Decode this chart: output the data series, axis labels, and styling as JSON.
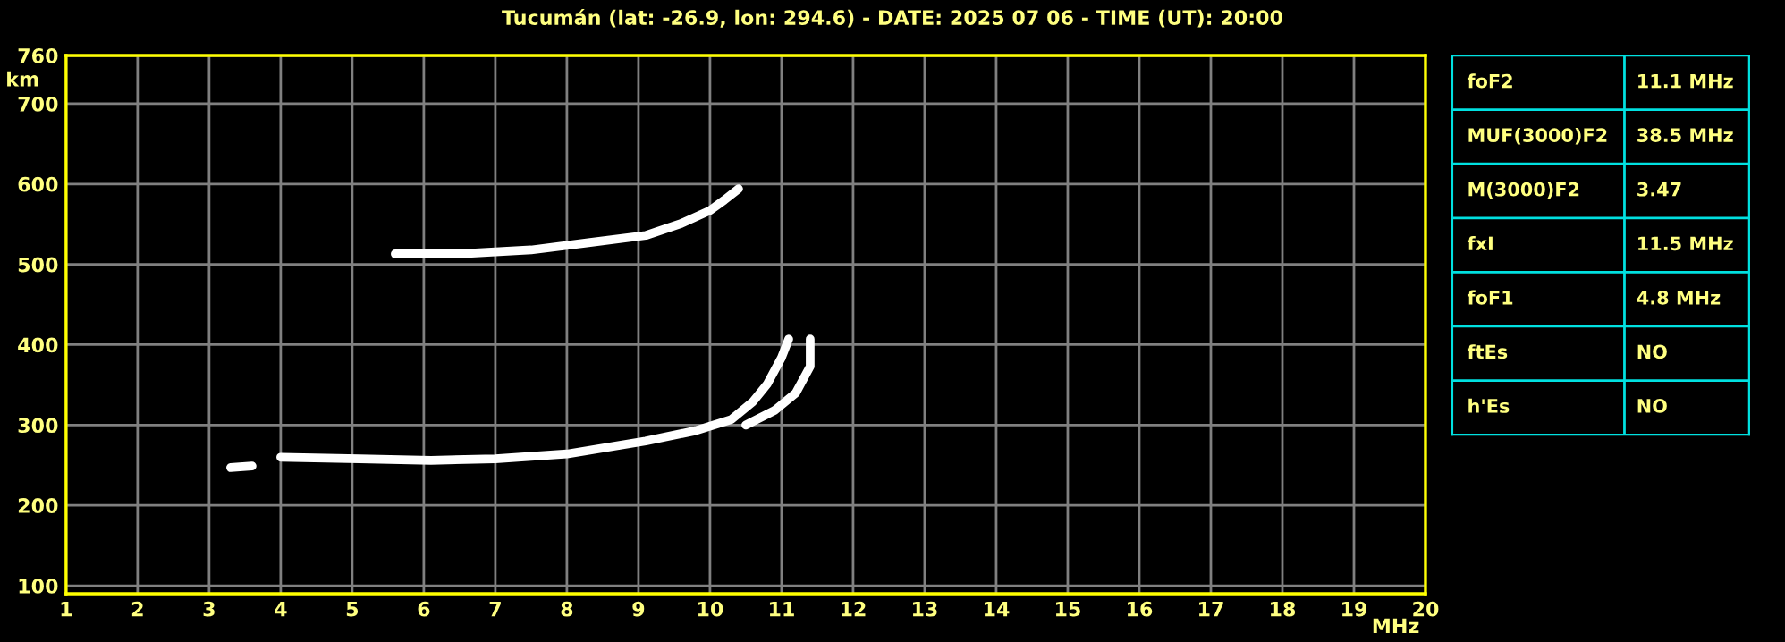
{
  "chart_data": [
    {
      "type": "line",
      "title": "Tucumán (lat: -26.9, lon: 294.6) - DATE: 2025 07 06 - TIME (UT): 20:00",
      "xlabel": "MHz",
      "ylabel": "km",
      "xlim": [
        1,
        20
      ],
      "xticks": [
        1,
        2,
        3,
        4,
        5,
        6,
        7,
        8,
        9,
        10,
        11,
        12,
        13,
        14,
        15,
        16,
        17,
        18,
        19,
        20
      ],
      "ylim": [
        90,
        760
      ],
      "yticks": [
        100,
        200,
        300,
        400,
        500,
        600,
        700,
        760
      ],
      "grid": true,
      "legend": false,
      "marker": "none",
      "line_style": "solid",
      "series": [
        {
          "color": "#ffffff",
          "x": [
            3.3,
            3.6
          ],
          "values": [
            247,
            249
          ]
        },
        {
          "color": "#ffffff",
          "x": [
            4.0,
            5.1,
            6.1,
            7.0,
            8.0,
            9.1,
            9.8,
            10.3,
            10.6,
            10.8,
            11.0,
            11.1
          ],
          "values": [
            260,
            258,
            256,
            258,
            264,
            280,
            293,
            307,
            329,
            351,
            384,
            407
          ]
        },
        {
          "color": "#ffffff",
          "x": [
            10.5,
            10.9,
            11.2,
            11.4,
            11.4
          ],
          "values": [
            300,
            318,
            340,
            373,
            407
          ]
        },
        {
          "color": "#ffffff",
          "x": [
            5.6,
            6.5,
            7.5,
            8.3,
            9.1,
            9.6,
            10.0,
            10.2,
            10.4
          ],
          "values": [
            513,
            513,
            518,
            527,
            536,
            551,
            567,
            580,
            594
          ]
        }
      ]
    },
    {
      "type": "other",
      "annotations": [
        "foF2",
        "11.1 MHz",
        "MUF(3000)F2",
        "38.5 MHz",
        "M(3000)F2",
        "3.47",
        "fxI",
        "11.5 MHz",
        "foF1",
        "4.8 MHz",
        "ftEs",
        "NO",
        "h'Es",
        "NO"
      ]
    }
  ]
}
